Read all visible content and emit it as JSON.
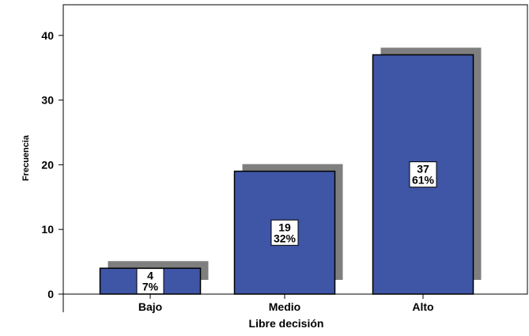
{
  "chart_data": {
    "type": "bar",
    "title": "",
    "xlabel": "Libre decisión",
    "ylabel": "Frecuencia",
    "categories": [
      "Bajo",
      "Medio",
      "Alto"
    ],
    "values": [
      4,
      19,
      37
    ],
    "percent_labels": [
      "7%",
      "32%",
      "61%"
    ],
    "yticks": [
      0,
      10,
      20,
      30,
      40
    ],
    "ylim": [
      0,
      43
    ],
    "grid": false,
    "legend": "none",
    "bar_color": "#3f55a5",
    "shadow_color": "#7f7f7f"
  }
}
